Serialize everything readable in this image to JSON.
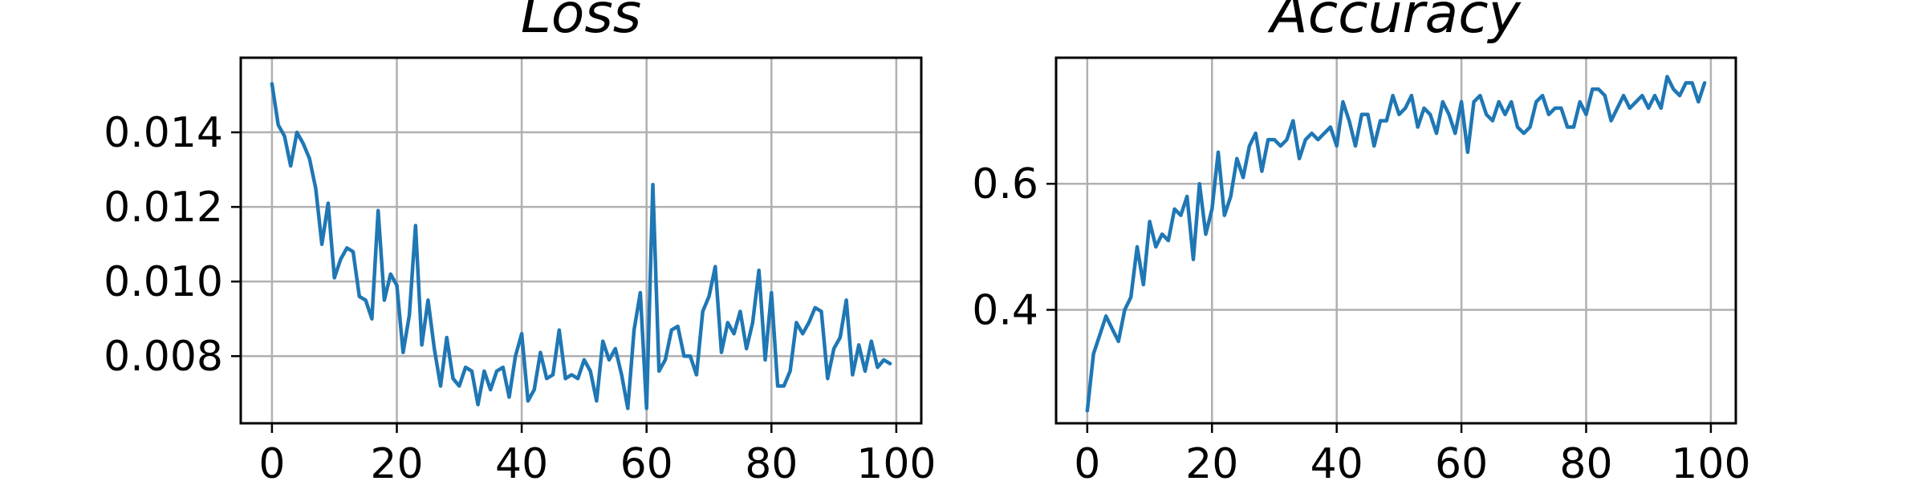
{
  "chart_data": [
    {
      "type": "line",
      "title": "Loss",
      "xlabel": "",
      "ylabel": "",
      "xlim": [
        -5,
        104
      ],
      "ylim": [
        0.0062,
        0.016
      ],
      "grid": true,
      "xticks": [
        0,
        20,
        40,
        60,
        80,
        100
      ],
      "xtick_labels": [
        "0",
        "20",
        "40",
        "60",
        "80",
        "100"
      ],
      "yticks": [
        0.008,
        0.01,
        0.012,
        0.014
      ],
      "ytick_labels": [
        "0.008",
        "0.010",
        "0.012",
        "0.014"
      ],
      "color": "#1f77b4",
      "x": [
        0,
        1,
        2,
        3,
        4,
        5,
        6,
        7,
        8,
        9,
        10,
        11,
        12,
        13,
        14,
        15,
        16,
        17,
        18,
        19,
        20,
        21,
        22,
        23,
        24,
        25,
        26,
        27,
        28,
        29,
        30,
        31,
        32,
        33,
        34,
        35,
        36,
        37,
        38,
        39,
        40,
        41,
        42,
        43,
        44,
        45,
        46,
        47,
        48,
        49,
        50,
        51,
        52,
        53,
        54,
        55,
        56,
        57,
        58,
        59,
        60,
        61,
        62,
        63,
        64,
        65,
        66,
        67,
        68,
        69,
        70,
        71,
        72,
        73,
        74,
        75,
        76,
        77,
        78,
        79,
        80,
        81,
        82,
        83,
        84,
        85,
        86,
        87,
        88,
        89,
        90,
        91,
        92,
        93,
        94,
        95,
        96,
        97,
        98,
        99
      ],
      "y": [
        0.0153,
        0.0142,
        0.0139,
        0.0131,
        0.014,
        0.0137,
        0.0133,
        0.0125,
        0.011,
        0.0121,
        0.0101,
        0.0106,
        0.0109,
        0.0108,
        0.0096,
        0.0095,
        0.009,
        0.0119,
        0.0095,
        0.0102,
        0.0099,
        0.0081,
        0.0091,
        0.0115,
        0.0083,
        0.0095,
        0.0082,
        0.0072,
        0.0085,
        0.0074,
        0.0072,
        0.0077,
        0.0076,
        0.0067,
        0.0076,
        0.0071,
        0.0076,
        0.0077,
        0.0069,
        0.008,
        0.0086,
        0.0068,
        0.0071,
        0.0081,
        0.0074,
        0.0075,
        0.0087,
        0.0074,
        0.0075,
        0.0074,
        0.0079,
        0.0076,
        0.0068,
        0.0084,
        0.0079,
        0.0082,
        0.0075,
        0.0066,
        0.0087,
        0.0097,
        0.0066,
        0.0126,
        0.0076,
        0.0079,
        0.0087,
        0.0088,
        0.008,
        0.008,
        0.0075,
        0.0092,
        0.0096,
        0.0104,
        0.0081,
        0.0089,
        0.0086,
        0.0092,
        0.0082,
        0.0089,
        0.0103,
        0.0079,
        0.0097,
        0.0072,
        0.0072,
        0.0076,
        0.0089,
        0.0086,
        0.0089,
        0.0093,
        0.0092,
        0.0074,
        0.0082,
        0.0085,
        0.0095,
        0.0075,
        0.0083,
        0.0076,
        0.0084,
        0.0077,
        0.0079,
        0.0078
      ]
    },
    {
      "type": "line",
      "title": "Accuracy",
      "xlabel": "",
      "ylabel": "",
      "xlim": [
        -5,
        104
      ],
      "ylim": [
        0.22,
        0.8
      ],
      "grid": true,
      "xticks": [
        0,
        20,
        40,
        60,
        80,
        100
      ],
      "xtick_labels": [
        "0",
        "20",
        "40",
        "60",
        "80",
        "100"
      ],
      "yticks": [
        0.4,
        0.6
      ],
      "ytick_labels": [
        "0.4",
        "0.6"
      ],
      "color": "#1f77b4",
      "x": [
        0,
        1,
        2,
        3,
        4,
        5,
        6,
        7,
        8,
        9,
        10,
        11,
        12,
        13,
        14,
        15,
        16,
        17,
        18,
        19,
        20,
        21,
        22,
        23,
        24,
        25,
        26,
        27,
        28,
        29,
        30,
        31,
        32,
        33,
        34,
        35,
        36,
        37,
        38,
        39,
        40,
        41,
        42,
        43,
        44,
        45,
        46,
        47,
        48,
        49,
        50,
        51,
        52,
        53,
        54,
        55,
        56,
        57,
        58,
        59,
        60,
        61,
        62,
        63,
        64,
        65,
        66,
        67,
        68,
        69,
        70,
        71,
        72,
        73,
        74,
        75,
        76,
        77,
        78,
        79,
        80,
        81,
        82,
        83,
        84,
        85,
        86,
        87,
        88,
        89,
        90,
        91,
        92,
        93,
        94,
        95,
        96,
        97,
        98,
        99
      ],
      "y": [
        0.24,
        0.33,
        0.36,
        0.39,
        0.37,
        0.35,
        0.4,
        0.42,
        0.5,
        0.44,
        0.54,
        0.5,
        0.52,
        0.51,
        0.56,
        0.55,
        0.58,
        0.48,
        0.6,
        0.52,
        0.56,
        0.65,
        0.55,
        0.58,
        0.64,
        0.61,
        0.66,
        0.68,
        0.62,
        0.67,
        0.67,
        0.66,
        0.67,
        0.7,
        0.64,
        0.67,
        0.68,
        0.67,
        0.68,
        0.69,
        0.66,
        0.73,
        0.7,
        0.66,
        0.71,
        0.71,
        0.66,
        0.7,
        0.7,
        0.74,
        0.71,
        0.72,
        0.74,
        0.69,
        0.72,
        0.71,
        0.68,
        0.73,
        0.71,
        0.68,
        0.73,
        0.65,
        0.73,
        0.74,
        0.71,
        0.7,
        0.73,
        0.71,
        0.73,
        0.69,
        0.68,
        0.69,
        0.73,
        0.74,
        0.71,
        0.72,
        0.72,
        0.69,
        0.69,
        0.73,
        0.71,
        0.75,
        0.75,
        0.74,
        0.7,
        0.72,
        0.74,
        0.72,
        0.73,
        0.74,
        0.72,
        0.74,
        0.72,
        0.77,
        0.75,
        0.74,
        0.76,
        0.76,
        0.73,
        0.76
      ]
    }
  ]
}
